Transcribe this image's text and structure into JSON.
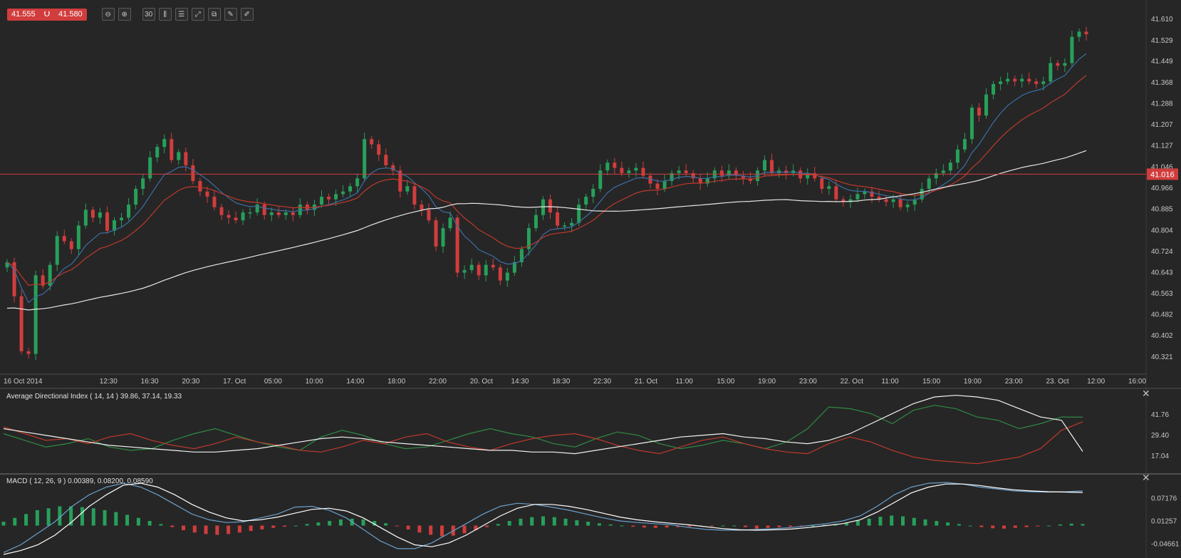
{
  "toolbar": {
    "bid": "41.555",
    "ask": "41.580",
    "buttons": [
      {
        "name": "zoom-out-button",
        "icon": "zoom-out-icon",
        "glyph": "⊖"
      },
      {
        "name": "zoom-in-button",
        "icon": "zoom-in-icon",
        "glyph": "⊕"
      },
      {
        "name": "timeframe-button",
        "icon": "timeframe-icon",
        "glyph": "30"
      },
      {
        "name": "chart-type-button",
        "icon": "candlestick-icon",
        "glyph": "⫼"
      },
      {
        "name": "indicators-button",
        "icon": "list-icon",
        "glyph": "☰"
      },
      {
        "name": "expand-button",
        "icon": "expand-icon",
        "glyph": "⤢"
      },
      {
        "name": "copy-button",
        "icon": "copy-icon",
        "glyph": "⧉"
      },
      {
        "name": "edit-button",
        "icon": "edit-icon",
        "glyph": "✎"
      },
      {
        "name": "draw-button",
        "icon": "draw-icon",
        "glyph": "✐"
      }
    ]
  },
  "colors": {
    "background": "#262626",
    "up": "#27a05a",
    "down": "#d13d3d",
    "ma_fast": "#3c6fa6",
    "ma_mid": "#c0392b",
    "ma_slow": "#e6e6e6",
    "grid_border": "#3a3a3a",
    "adx_plus": "#2f8a45",
    "adx_minus": "#c0392b",
    "adx_line": "#f2f2f2",
    "macd_line": "#6aa0cc",
    "signal_line": "#ffffff"
  },
  "chart_data": [
    {
      "type": "candlestick",
      "current_price": "41.016",
      "ylim": [
        40.28,
        41.64
      ],
      "yticks": [
        "41.610",
        "41.529",
        "41.449",
        "41.368",
        "41.288",
        "41.207",
        "41.127",
        "41.046",
        "40.966",
        "40.885",
        "40.804",
        "40.724",
        "40.643",
        "40.563",
        "40.482",
        "40.402",
        "40.321"
      ],
      "xticks": [
        "16 Oct 2014",
        "12:30",
        "16:30",
        "20:30",
        "17. Oct",
        "05:00",
        "10:00",
        "14:00",
        "18:00",
        "22:00",
        "20. Oct",
        "14:30",
        "18:30",
        "22:30",
        "21. Oct",
        "11:00",
        "15:00",
        "19:00",
        "23:00",
        "22. Oct",
        "11:00",
        "15:00",
        "19:00",
        "23:00",
        "23. Oct",
        "12:00",
        "16:00"
      ],
      "xtick_index": [
        0,
        21,
        30,
        39,
        48,
        57,
        66,
        75,
        84,
        93,
        102,
        111,
        120,
        129,
        138,
        147,
        156,
        165,
        174,
        183,
        192,
        201,
        210,
        219,
        228,
        237,
        246
      ],
      "closes": [
        40.68,
        40.55,
        40.34,
        40.33,
        40.63,
        40.59,
        40.67,
        40.78,
        40.76,
        40.73,
        40.82,
        40.88,
        40.85,
        40.87,
        40.8,
        40.84,
        40.85,
        40.9,
        40.96,
        41.0,
        41.08,
        41.12,
        41.15,
        41.07,
        41.1,
        41.05,
        40.99,
        40.95,
        40.93,
        40.89,
        40.86,
        40.85,
        40.84,
        40.87,
        40.87,
        40.9,
        40.86,
        40.87,
        40.86,
        40.87,
        40.86,
        40.9,
        40.88,
        40.9,
        40.93,
        40.92,
        40.94,
        40.95,
        40.97,
        41.0,
        41.15,
        41.13,
        41.09,
        41.05,
        41.03,
        40.95,
        40.97,
        40.9,
        40.88,
        40.84,
        40.74,
        40.81,
        40.85,
        40.64,
        40.65,
        40.67,
        40.63,
        40.67,
        40.66,
        40.61,
        40.64,
        40.68,
        40.73,
        40.81,
        40.86,
        40.92,
        40.87,
        40.82,
        40.82,
        40.83,
        40.9,
        40.93,
        40.96,
        41.03,
        41.06,
        41.04,
        41.02,
        41.03,
        41.04,
        41.01,
        40.98,
        40.96,
        40.99,
        41.02,
        41.03,
        41.02,
        41.0,
        40.98,
        41.0,
        41.03,
        41.01,
        41.03,
        41.01,
        41.0,
        40.99,
        41.03,
        41.07,
        41.02,
        41.03,
        41.02,
        41.03,
        41.0,
        41.02,
        41.0,
        40.96,
        40.97,
        40.92,
        40.91,
        40.92,
        40.94,
        40.95,
        40.93,
        40.92,
        40.91,
        40.92,
        40.89,
        40.9,
        40.92,
        40.96,
        41.0,
        41.02,
        41.03,
        41.06,
        41.11,
        41.15,
        41.27,
        41.24,
        41.32,
        41.36,
        41.37,
        41.38,
        41.37,
        41.38,
        41.37,
        41.36,
        41.37,
        41.44,
        41.43,
        41.44,
        41.54,
        41.56,
        41.55
      ],
      "series": [
        {
          "name": "",
          "kind": "ma_fast"
        },
        {
          "name": "",
          "kind": "ma_mid"
        },
        {
          "name": "",
          "kind": "ma_slow"
        }
      ]
    },
    {
      "type": "line",
      "title": "Average Directional Index ( 14, 14 ) 39.86, 37.14, 19.33",
      "ylim": [
        8,
        55
      ],
      "yticks": [
        "41.76",
        "29.40",
        "17.04"
      ],
      "series": [
        {
          "name": "",
          "values": [
            30,
            26,
            22,
            24,
            27,
            22,
            20,
            21,
            26,
            30,
            33,
            29,
            25,
            22,
            20,
            28,
            32,
            29,
            24,
            21,
            22,
            26,
            30,
            33,
            30,
            28,
            24,
            22,
            27,
            31,
            29,
            24,
            21,
            23,
            26,
            24,
            21,
            25,
            33,
            46,
            45,
            42,
            36,
            44,
            47,
            45,
            40,
            38,
            33,
            36,
            40,
            39.86
          ]
        },
        {
          "name": "",
          "values": [
            34,
            30,
            26,
            27,
            24,
            28,
            30,
            26,
            23,
            21,
            24,
            28,
            25,
            23,
            20,
            19,
            22,
            26,
            24,
            28,
            30,
            25,
            22,
            20,
            24,
            27,
            29,
            30,
            27,
            23,
            20,
            18,
            22,
            26,
            28,
            24,
            21,
            19,
            18,
            24,
            28,
            25,
            20,
            16,
            14,
            13,
            12,
            14,
            16,
            21,
            32,
            37.14
          ]
        },
        {
          "name": "",
          "values": [
            33,
            31,
            29,
            27,
            25,
            23,
            22,
            21,
            20,
            19,
            19,
            20,
            21,
            23,
            25,
            27,
            28,
            27,
            25,
            24,
            23,
            22,
            21,
            20,
            20,
            19,
            19,
            18,
            20,
            22,
            24,
            26,
            28,
            29,
            30,
            28,
            27,
            25,
            24,
            26,
            30,
            36,
            42,
            48,
            52,
            53,
            52,
            50,
            45,
            40,
            38,
            19.33
          ]
        }
      ]
    },
    {
      "type": "bar",
      "title": "MACD ( 12, 26, 9 ) 0.00389, 0.08200, 0.08590",
      "ylim": [
        -0.075,
        0.125
      ],
      "yticks": [
        "0.07176",
        "0.01257",
        "-0.04661"
      ],
      "histogram": [
        0.01,
        0.02,
        0.03,
        0.04,
        0.045,
        0.05,
        0.05,
        0.048,
        0.045,
        0.04,
        0.035,
        0.028,
        0.02,
        0.012,
        0.004,
        -0.004,
        -0.012,
        -0.018,
        -0.022,
        -0.024,
        -0.022,
        -0.018,
        -0.014,
        -0.01,
        -0.006,
        -0.003,
        0.0,
        0.004,
        0.008,
        0.012,
        0.016,
        0.018,
        0.016,
        0.012,
        0.006,
        -0.002,
        -0.01,
        -0.018,
        -0.024,
        -0.028,
        -0.026,
        -0.02,
        -0.012,
        -0.004,
        0.004,
        0.012,
        0.018,
        0.022,
        0.024,
        0.022,
        0.018,
        0.014,
        0.01,
        0.006,
        0.003,
        0.0,
        -0.003,
        -0.005,
        -0.006,
        -0.005,
        -0.004,
        -0.003,
        -0.002,
        -0.001,
        0.0,
        0.0,
        -0.004,
        -0.008,
        -0.006,
        -0.004,
        -0.003,
        -0.001,
        0.0,
        0.002,
        0.004,
        0.008,
        0.013,
        0.018,
        0.023,
        0.026,
        0.024,
        0.02,
        0.016,
        0.012,
        0.008,
        0.004,
        0.0,
        -0.004,
        -0.007,
        -0.008,
        -0.006,
        -0.004,
        -0.002,
        0.0,
        0.003,
        0.005,
        0.004
      ],
      "macd": [
        -0.07,
        -0.05,
        -0.02,
        0.01,
        0.05,
        0.08,
        0.1,
        0.11,
        0.1,
        0.08,
        0.055,
        0.03,
        0.015,
        0.008,
        0.01,
        0.02,
        0.03,
        0.048,
        0.05,
        0.04,
        0.02,
        -0.01,
        -0.04,
        -0.06,
        -0.06,
        -0.045,
        -0.02,
        0.005,
        0.03,
        0.05,
        0.058,
        0.055,
        0.048,
        0.04,
        0.03,
        0.02,
        0.012,
        0.008,
        0.005,
        0.002,
        -0.005,
        -0.01,
        -0.012,
        -0.012,
        -0.01,
        -0.008,
        -0.005,
        0.0,
        0.005,
        0.012,
        0.025,
        0.05,
        0.08,
        0.1,
        0.11,
        0.112,
        0.108,
        0.1,
        0.095,
        0.09,
        0.088,
        0.087,
        0.088,
        0.09
      ],
      "signal": [
        -0.075,
        -0.065,
        -0.05,
        -0.025,
        0.01,
        0.05,
        0.08,
        0.105,
        0.11,
        0.1,
        0.08,
        0.055,
        0.035,
        0.02,
        0.012,
        0.015,
        0.022,
        0.032,
        0.042,
        0.045,
        0.038,
        0.02,
        -0.005,
        -0.03,
        -0.05,
        -0.055,
        -0.045,
        -0.025,
        0.0,
        0.025,
        0.045,
        0.055,
        0.055,
        0.05,
        0.042,
        0.032,
        0.022,
        0.015,
        0.01,
        0.006,
        0.002,
        -0.003,
        -0.008,
        -0.011,
        -0.012,
        -0.011,
        -0.009,
        -0.005,
        0.0,
        0.005,
        0.015,
        0.035,
        0.06,
        0.085,
        0.1,
        0.108,
        0.108,
        0.104,
        0.098,
        0.093,
        0.09,
        0.088,
        0.087,
        0.086
      ]
    }
  ]
}
